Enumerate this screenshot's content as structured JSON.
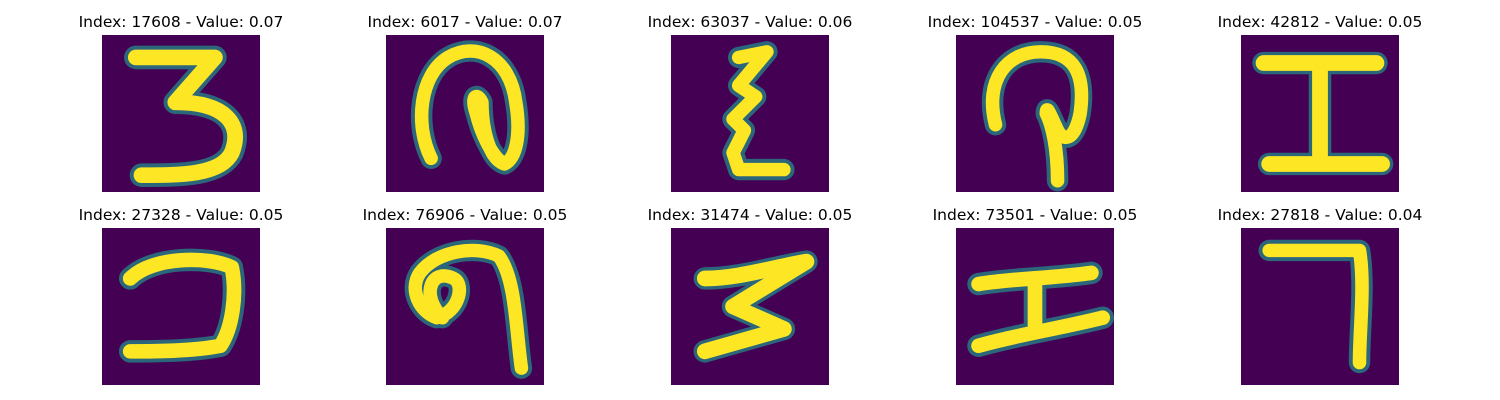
{
  "colors": {
    "background": "#440154",
    "edge": "#21918c",
    "mid": "#5ec962",
    "stroke": "#fde725"
  },
  "panels": [
    {
      "title": "Index: 17608 - Value: 0.07",
      "glyph": "3"
    },
    {
      "title": "Index: 6017 - Value: 0.07",
      "glyph": "loop-hook"
    },
    {
      "title": "Index: 63037 - Value: 0.06",
      "glyph": "zigzag"
    },
    {
      "title": "Index: 104537 - Value: 0.05",
      "glyph": "loop-hook"
    },
    {
      "title": "Index: 42812 - Value: 0.05",
      "glyph": "I"
    },
    {
      "title": "Index: 27328 - Value: 0.05",
      "glyph": "reversed-c"
    },
    {
      "title": "Index: 76906 - Value: 0.05",
      "glyph": "loop-hook"
    },
    {
      "title": "Index: 31474 - Value: 0.05",
      "glyph": "Z"
    },
    {
      "title": "Index: 73501 - Value: 0.05",
      "glyph": "I"
    },
    {
      "title": "Index: 27818 - Value: 0.04",
      "glyph": "7"
    }
  ]
}
